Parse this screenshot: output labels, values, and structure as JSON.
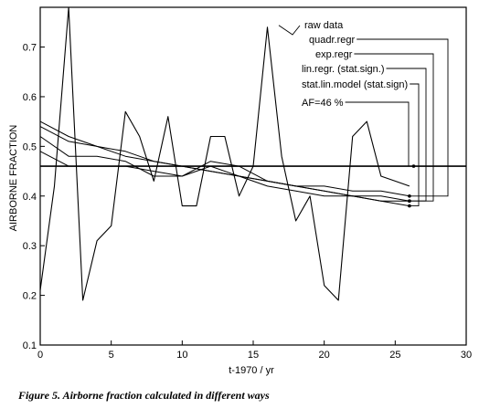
{
  "caption": "Figure 5. Airborne fraction calculated in different ways",
  "chart_data": {
    "type": "line",
    "title": "",
    "xlabel": "t-1970 / yr",
    "ylabel": "AIRBORNE FRACTION",
    "xlim": [
      0,
      30
    ],
    "ylim": [
      0.1,
      0.78
    ],
    "xticks": [
      0,
      5,
      10,
      15,
      20,
      25,
      30
    ],
    "yticks": [
      0.1,
      0.2,
      0.3,
      0.4,
      0.5,
      0.6,
      0.7
    ],
    "xtick_labels": [
      "0",
      "5",
      "10",
      "15",
      "20",
      "25",
      "30"
    ],
    "ytick_labels": [
      "0.1",
      "0.2",
      "0.3",
      "0.4",
      "0.5",
      "0.6",
      "0.7"
    ],
    "grid": false,
    "legend_placement": "top-right, labels with leader lines to curve ends",
    "series": [
      {
        "name": "raw data",
        "x": [
          0,
          1,
          2,
          3,
          4,
          5,
          6,
          7,
          8,
          9,
          10,
          11,
          12,
          13,
          14,
          15,
          16,
          17,
          18,
          19,
          20,
          21,
          22,
          23,
          24,
          25,
          26
        ],
        "values": [
          0.21,
          0.42,
          0.78,
          0.19,
          0.31,
          0.34,
          0.57,
          0.52,
          0.43,
          0.56,
          0.38,
          0.38,
          0.52,
          0.52,
          0.4,
          0.46,
          0.74,
          0.48,
          0.35,
          0.4,
          0.22,
          0.19,
          0.52,
          0.55,
          0.44,
          0.43,
          0.42
        ]
      },
      {
        "name": "quadr.regr",
        "x": [
          0,
          2,
          4,
          6,
          8,
          10,
          12,
          14,
          16,
          18,
          20,
          22,
          24,
          26
        ],
        "values": [
          0.49,
          0.46,
          0.46,
          0.46,
          0.45,
          0.44,
          0.47,
          0.46,
          0.43,
          0.42,
          0.42,
          0.41,
          0.41,
          0.4
        ]
      },
      {
        "name": "exp.regr",
        "x": [
          0,
          2,
          4,
          6,
          8,
          10,
          12,
          14,
          16,
          18,
          20,
          22,
          24,
          26
        ],
        "values": [
          0.52,
          0.48,
          0.48,
          0.47,
          0.44,
          0.44,
          0.46,
          0.44,
          0.42,
          0.41,
          0.4,
          0.4,
          0.4,
          0.39
        ]
      },
      {
        "name": "lin.regr. (stat.sign.)",
        "x": [
          0,
          2,
          4,
          6,
          8,
          10,
          12,
          14,
          16,
          18,
          20,
          22,
          24,
          26
        ],
        "values": [
          0.54,
          0.51,
          0.5,
          0.48,
          0.47,
          0.46,
          0.45,
          0.44,
          0.43,
          0.42,
          0.41,
          0.4,
          0.39,
          0.39
        ]
      },
      {
        "name": "stat.lin.model (stat.sign)",
        "x": [
          0,
          2,
          4,
          6,
          8,
          10,
          12,
          14,
          16,
          18,
          20,
          22,
          24,
          26
        ],
        "values": [
          0.55,
          0.52,
          0.5,
          0.49,
          0.47,
          0.46,
          0.45,
          0.44,
          0.43,
          0.42,
          0.41,
          0.4,
          0.39,
          0.38
        ]
      },
      {
        "name": "AF=46 %",
        "x": [
          0,
          30
        ],
        "values": [
          0.46,
          0.46
        ]
      }
    ]
  }
}
